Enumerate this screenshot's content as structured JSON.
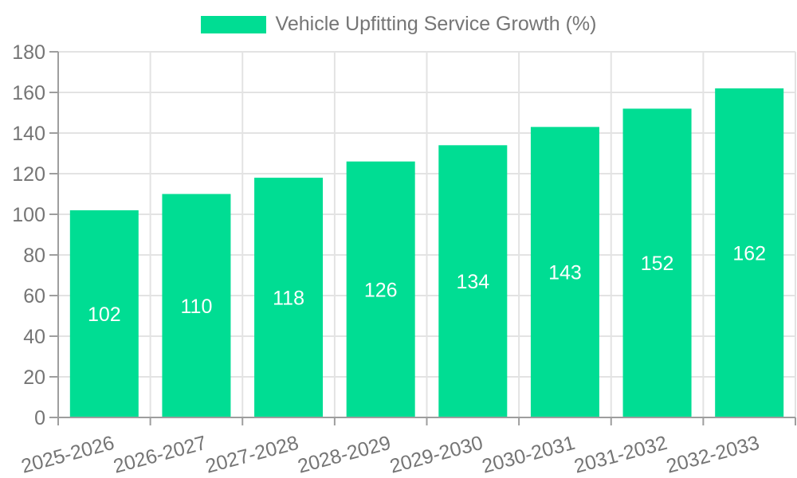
{
  "legend": {
    "label": "Vehicle Upfitting Service Growth (%)"
  },
  "chart_data": {
    "type": "bar",
    "title": "Vehicle Upfitting Service Growth (%)",
    "categories": [
      "2025-2026",
      "2026-2027",
      "2027-2028",
      "2028-2029",
      "2029-2030",
      "2030-2031",
      "2031-2032",
      "2032-2033"
    ],
    "values": [
      102,
      110,
      118,
      126,
      134,
      143,
      152,
      162
    ],
    "value_labels": [
      "102",
      "110",
      "118",
      "126",
      "134",
      "143",
      "152",
      "162"
    ],
    "xlabel": "",
    "ylabel": "",
    "ylim": [
      0,
      180
    ],
    "yticks": [
      0,
      20,
      40,
      60,
      80,
      100,
      120,
      140,
      160,
      180
    ],
    "grid": true,
    "legend_position": "top",
    "x_label_rotation_deg": -15,
    "colors": {
      "bar": "#00DD93",
      "grid": "#e3e3e3",
      "axis": "#9e9e9e",
      "tick_label": "#757575",
      "value_label": "#ffffff",
      "background": "#ffffff"
    }
  }
}
